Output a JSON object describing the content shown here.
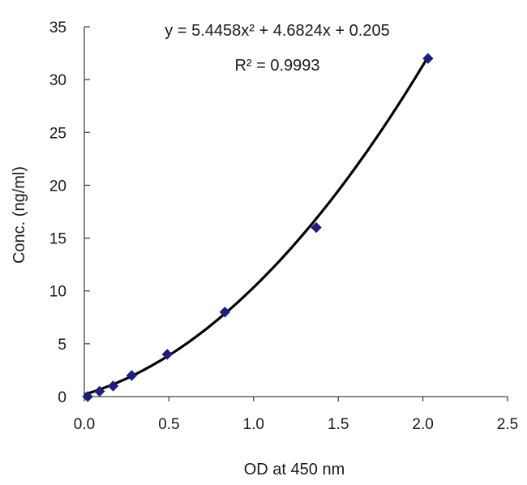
{
  "chart_data": {
    "type": "scatter",
    "title": "",
    "xlabel": "OD at 450 nm",
    "ylabel": "Conc. (ng/ml)",
    "xlim": [
      0,
      2.5
    ],
    "ylim": [
      0,
      35
    ],
    "x_ticks": [
      "0.0",
      "0.5",
      "1.0",
      "1.5",
      "2.0",
      "2.5"
    ],
    "y_ticks": [
      "0",
      "5",
      "10",
      "15",
      "20",
      "25",
      "30",
      "35"
    ],
    "grid": false,
    "marker_color": "#1f1f7a",
    "curve_color": "#000000",
    "series": [
      {
        "points": [
          {
            "x": 0.02,
            "y": 0.0
          },
          {
            "x": 0.09,
            "y": 0.5
          },
          {
            "x": 0.17,
            "y": 1.0
          },
          {
            "x": 0.28,
            "y": 2.0
          },
          {
            "x": 0.49,
            "y": 4.0
          },
          {
            "x": 0.83,
            "y": 8.0
          },
          {
            "x": 1.37,
            "y": 16.0
          },
          {
            "x": 2.03,
            "y": 32.0
          }
        ]
      }
    ],
    "trendline": {
      "type": "polynomial",
      "coefficients": [
        5.4458,
        4.6824,
        0.205
      ],
      "x_range": [
        0.0,
        2.03
      ],
      "equation_label": "y = 5.4458x² + 4.6824x + 0.205",
      "r2_label": "R² = 0.9993"
    }
  }
}
